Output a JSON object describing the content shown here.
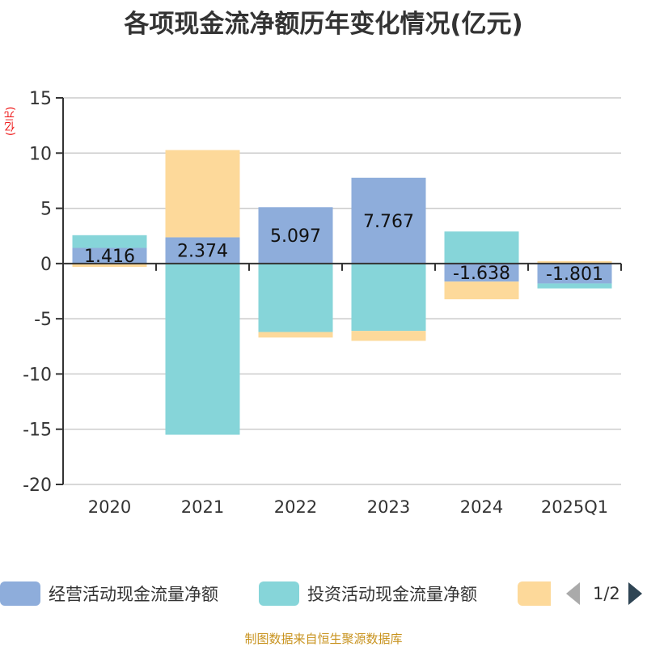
{
  "title": "各项现金流净额历年变化情况(亿元)",
  "source": "制图数据来自恒生聚源数据库",
  "legend_pager": "1/2",
  "chart_data": {
    "type": "bar",
    "stacked": true,
    "title": "各项现金流净额历年变化情况(亿元)",
    "ylabel": "(亿元)",
    "xlabel": "",
    "ylim": [
      -20,
      15
    ],
    "yticks": [
      15,
      10,
      5,
      0,
      -5,
      -10,
      -15,
      -20
    ],
    "ytick_labels": [
      "15",
      "10",
      "5",
      "0",
      "-5",
      "-10",
      "-15",
      "-20"
    ],
    "grid": true,
    "legend_position": "bottom",
    "categories": [
      "2020",
      "2021",
      "2022",
      "2023",
      "2024",
      "2025Q1"
    ],
    "series": [
      {
        "name": "经营活动现金流量净额",
        "color": "#8eaddb",
        "values": [
          1.416,
          2.374,
          5.097,
          7.767,
          -1.638,
          -1.801
        ],
        "labels": [
          "1.416",
          "2.374",
          "5.097",
          "7.767",
          "-1.638",
          "-1.801"
        ]
      },
      {
        "name": "投资活动现金流量净额",
        "color": "#86d5d9",
        "values": [
          1.15,
          -15.5,
          -6.2,
          -6.1,
          2.9,
          -0.45
        ]
      },
      {
        "color": "#fdd99a",
        "values": [
          -0.3,
          7.9,
          -0.5,
          -0.9,
          -1.6,
          0.22
        ]
      }
    ]
  }
}
